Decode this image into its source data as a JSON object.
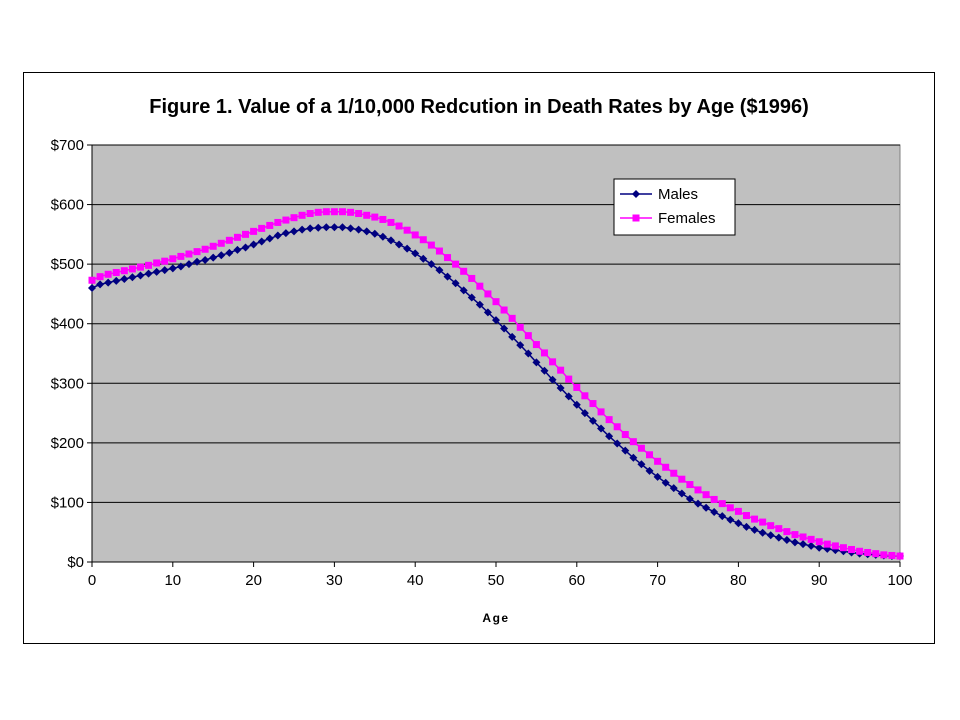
{
  "colors": {
    "plot_bg": "#c0c0c0",
    "males": "#000080",
    "females": "#ff00ff",
    "grid": "#000000"
  },
  "chart_data": {
    "type": "line",
    "title": "Figure 1. Value of a 1/10,000 Redcution in Death Rates by Age ($1996)",
    "xlabel": "Age",
    "ylabel": "",
    "xlim": [
      0,
      100
    ],
    "ylim": [
      0,
      700
    ],
    "xticks": [
      0,
      10,
      20,
      30,
      40,
      50,
      60,
      70,
      80,
      90,
      100
    ],
    "xtick_labels": [
      "0",
      "10",
      "20",
      "30",
      "40",
      "50",
      "60",
      "70",
      "80",
      "90",
      "100"
    ],
    "yticks": [
      0,
      100,
      200,
      300,
      400,
      500,
      600,
      700
    ],
    "ytick_labels": [
      "$0",
      "$100",
      "$200",
      "$300",
      "$400",
      "$500",
      "$600",
      "$700"
    ],
    "grid": "horizontal",
    "legend_position": "top-right",
    "x": [
      0,
      1,
      2,
      3,
      4,
      5,
      6,
      7,
      8,
      9,
      10,
      11,
      12,
      13,
      14,
      15,
      16,
      17,
      18,
      19,
      20,
      21,
      22,
      23,
      24,
      25,
      26,
      27,
      28,
      29,
      30,
      31,
      32,
      33,
      34,
      35,
      36,
      37,
      38,
      39,
      40,
      41,
      42,
      43,
      44,
      45,
      46,
      47,
      48,
      49,
      50,
      51,
      52,
      53,
      54,
      55,
      56,
      57,
      58,
      59,
      60,
      61,
      62,
      63,
      64,
      65,
      66,
      67,
      68,
      69,
      70,
      71,
      72,
      73,
      74,
      75,
      76,
      77,
      78,
      79,
      80,
      81,
      82,
      83,
      84,
      85,
      86,
      87,
      88,
      89,
      90,
      91,
      92,
      93,
      94,
      95,
      96,
      97,
      98,
      99,
      100
    ],
    "series": [
      {
        "name": "Males",
        "marker": "diamond",
        "values": [
          460,
          466,
          469,
          472,
          475,
          478,
          481,
          484,
          487,
          490,
          493,
          496,
          500,
          504,
          507,
          511,
          515,
          519,
          524,
          528,
          533,
          538,
          543,
          548,
          552,
          555,
          558,
          560,
          561,
          562,
          562,
          562,
          560,
          558,
          555,
          551,
          546,
          540,
          533,
          526,
          518,
          509,
          500,
          490,
          479,
          468,
          456,
          444,
          432,
          419,
          406,
          392,
          378,
          364,
          350,
          335,
          321,
          306,
          292,
          278,
          264,
          250,
          237,
          224,
          211,
          199,
          187,
          175,
          164,
          153,
          143,
          133,
          124,
          115,
          106,
          98,
          91,
          84,
          77,
          71,
          65,
          59,
          54,
          49,
          45,
          41,
          37,
          33,
          30,
          27,
          24,
          22,
          20,
          18,
          16,
          14,
          13,
          12,
          11,
          10,
          10
        ]
      },
      {
        "name": "Females",
        "marker": "square",
        "values": [
          473,
          479,
          483,
          486,
          489,
          492,
          495,
          498,
          502,
          505,
          509,
          513,
          517,
          521,
          525,
          530,
          535,
          540,
          545,
          550,
          555,
          560,
          565,
          570,
          574,
          578,
          582,
          585,
          587,
          588,
          588,
          588,
          587,
          585,
          582,
          579,
          575,
          570,
          564,
          557,
          549,
          541,
          532,
          522,
          511,
          500,
          488,
          476,
          463,
          450,
          437,
          423,
          409,
          394,
          380,
          365,
          351,
          336,
          322,
          307,
          293,
          279,
          266,
          252,
          239,
          227,
          214,
          202,
          191,
          180,
          169,
          159,
          149,
          139,
          130,
          121,
          113,
          105,
          98,
          91,
          85,
          78,
          72,
          67,
          61,
          56,
          51,
          46,
          42,
          38,
          34,
          30,
          27,
          24,
          21,
          18,
          16,
          14,
          12,
          11,
          10
        ]
      }
    ]
  }
}
